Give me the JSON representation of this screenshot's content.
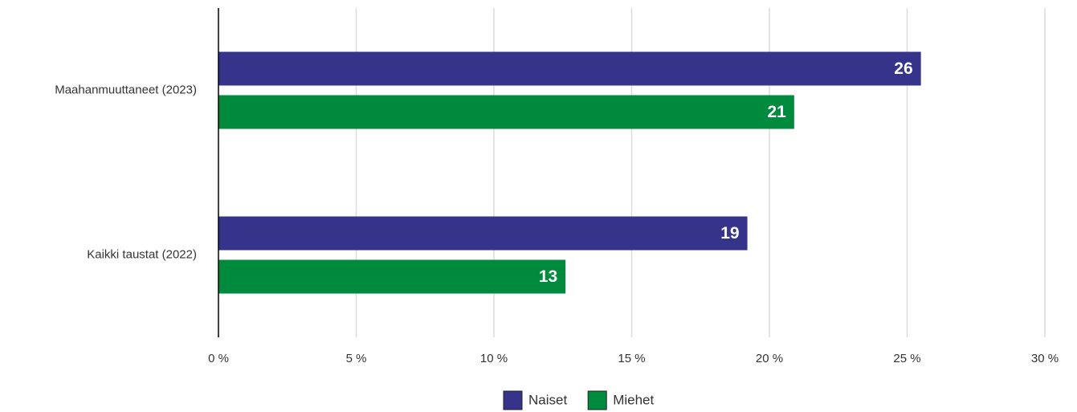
{
  "chart_data": {
    "type": "barh",
    "categories": [
      "Maahanmuuttaneet (2023)",
      "Kaikki taustat (2022)"
    ],
    "series": [
      {
        "name": "Naiset",
        "color": "#35348a",
        "values": [
          25.5,
          19.2
        ],
        "value_labels": [
          "26",
          "19"
        ]
      },
      {
        "name": "Miehet",
        "color": "#008a3e",
        "values": [
          20.9,
          12.6
        ],
        "value_labels": [
          "21",
          "13"
        ]
      }
    ],
    "xlim": [
      0,
      30
    ],
    "xticks": [
      {
        "value": 0,
        "label": "0 %"
      },
      {
        "value": 5,
        "label": "5 %"
      },
      {
        "value": 10,
        "label": "10 %"
      },
      {
        "value": 15,
        "label": "15 %"
      },
      {
        "value": 20,
        "label": "20 %"
      },
      {
        "value": 25,
        "label": "25 %"
      },
      {
        "value": 30,
        "label": "30 %"
      }
    ],
    "grid": true,
    "legend": "bottom"
  }
}
